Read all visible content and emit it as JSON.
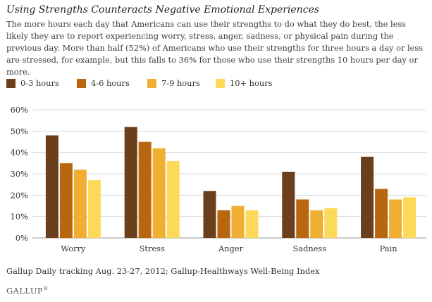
{
  "header": {
    "title": "Using Strengths Counteracts Negative Emotional Experiences",
    "subtitle": "The more hours each day that Americans can use their strengths to do what they do best, the less likely they are to report experiencing worry, stress, anger, sadness, or physical pain during the previous day. More than half (52%) of Americans who use their strengths for three hours a day or less are stressed, for example, but this falls to 36% for those who use their strengths 10 hours per day or more."
  },
  "chart_data": {
    "type": "bar",
    "categories": [
      "Worry",
      "Stress",
      "Anger",
      "Sadness",
      "Pain"
    ],
    "series": [
      {
        "name": "0-3 hours",
        "color": "#6b3f1b",
        "values": [
          48,
          52,
          22,
          31,
          38
        ]
      },
      {
        "name": "4-6 hours",
        "color": "#b8670f",
        "values": [
          35,
          45,
          13,
          18,
          23
        ]
      },
      {
        "name": "7-9 hours",
        "color": "#f0ae32",
        "values": [
          32,
          42,
          15,
          13,
          18
        ]
      },
      {
        "name": "10+ hours",
        "color": "#fdd95a",
        "values": [
          27,
          36,
          13,
          14,
          19
        ]
      }
    ],
    "ylim": [
      0,
      60
    ],
    "yticks": [
      0,
      10,
      20,
      30,
      40,
      50,
      60
    ],
    "ytick_labels": [
      "0%",
      "10%",
      "20%",
      "30%",
      "40%",
      "50%",
      "60%"
    ],
    "grid": true,
    "legend_position": "top-left"
  },
  "footer": {
    "source": "Gallup Daily tracking Aug. 23-27, 2012; Gallup-Healthways Well-Being Index",
    "logo": "GALLUP",
    "logo_mark": "®"
  }
}
